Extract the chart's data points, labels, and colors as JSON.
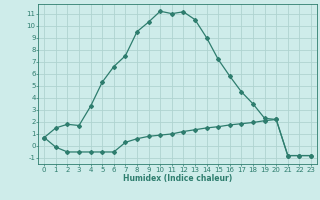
{
  "xlabel": "Humidex (Indice chaleur)",
  "line1_x": [
    0,
    1,
    2,
    3,
    4,
    5,
    6,
    7,
    8,
    9,
    10,
    11,
    12,
    13,
    14,
    15,
    16,
    17,
    18,
    19,
    20,
    21,
    22,
    23
  ],
  "line1_y": [
    0.7,
    1.5,
    1.8,
    1.7,
    3.3,
    5.3,
    6.6,
    7.5,
    9.5,
    10.3,
    11.2,
    11.0,
    11.15,
    10.5,
    9.0,
    7.2,
    5.8,
    4.5,
    3.5,
    2.3,
    2.2,
    -0.8,
    -0.8,
    -0.8
  ],
  "line2_x": [
    0,
    1,
    2,
    3,
    4,
    5,
    6,
    7,
    8,
    9,
    10,
    11,
    12,
    13,
    14,
    15,
    16,
    17,
    18,
    19,
    20,
    21,
    22,
    23
  ],
  "line2_y": [
    0.7,
    -0.1,
    -0.5,
    -0.5,
    -0.5,
    -0.5,
    -0.5,
    0.3,
    0.6,
    0.8,
    0.9,
    1.0,
    1.2,
    1.35,
    1.5,
    1.6,
    1.75,
    1.85,
    1.95,
    2.1,
    2.2,
    -0.8,
    -0.8,
    -0.8
  ],
  "line_color": "#2e7d6e",
  "bg_color": "#ceecea",
  "grid_color": "#afd4d0",
  "ylim": [
    -1.5,
    11.8
  ],
  "xlim": [
    -0.5,
    23.5
  ],
  "yticks": [
    -1,
    0,
    1,
    2,
    3,
    4,
    5,
    6,
    7,
    8,
    9,
    10,
    11
  ],
  "xticks": [
    0,
    1,
    2,
    3,
    4,
    5,
    6,
    7,
    8,
    9,
    10,
    11,
    12,
    13,
    14,
    15,
    16,
    17,
    18,
    19,
    20,
    21,
    22,
    23
  ],
  "marker": "D",
  "marker_size": 2.0,
  "line_width": 0.9,
  "tick_fontsize": 5.0,
  "xlabel_fontsize": 5.5
}
